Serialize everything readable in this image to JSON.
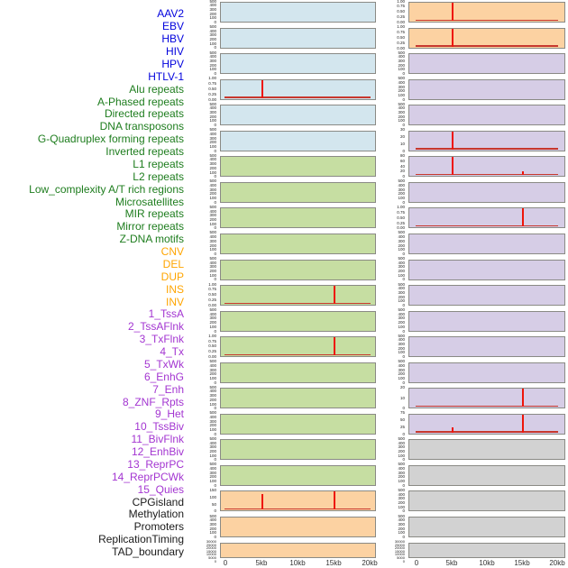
{
  "chart_data": {
    "type": "area",
    "title": "",
    "layout": {
      "columns": 2,
      "rows_per_column": 22,
      "fill_order": "column-major",
      "grid": false,
      "x_axis": {
        "tick_labels": [
          "0",
          "5kb",
          "10kb",
          "15kb",
          "20kb"
        ],
        "range_kb": [
          0,
          20
        ],
        "shown_only_on_bottom_row": true
      }
    },
    "category_styles": {
      "virus": {
        "label_color": "#0202dd",
        "panel_color": "#d3e6ee"
      },
      "repeat": {
        "label_color": "#1e7d1e",
        "panel_color": "#c6dea2"
      },
      "sv": {
        "label_color": "#ffa500",
        "panel_color": "#fcd2a2"
      },
      "chromhmm": {
        "label_color": "#a335d1",
        "panel_color": "#d6cde6"
      },
      "other": {
        "label_color": "#1a1a1a",
        "panel_color": "#d2d2d2"
      }
    },
    "series_colors": {
      "spike": "#ee1509",
      "baseline": "#c7382e",
      "panel_border": "#8a8a85"
    },
    "panels": [
      {
        "label": "AAV2",
        "category": "virus",
        "y_ticks": [
          "500",
          "400",
          "300",
          "200",
          "100",
          "0"
        ],
        "spikes": [],
        "baseline": false
      },
      {
        "label": "EBV",
        "category": "virus",
        "y_ticks": [
          "500",
          "400",
          "300",
          "200",
          "100",
          "0"
        ],
        "spikes": [],
        "baseline": false
      },
      {
        "label": "HBV",
        "category": "virus",
        "y_ticks": [
          "500",
          "400",
          "300",
          "200",
          "100",
          "0"
        ],
        "spikes": [],
        "baseline": false
      },
      {
        "label": "HIV",
        "category": "virus",
        "y_ticks": [
          "1.00",
          "0.75",
          "0.50",
          "0.25",
          "0.00"
        ],
        "spikes": [
          {
            "x_kb": 5,
            "height": 1
          }
        ],
        "baseline": true
      },
      {
        "label": "HPV",
        "category": "virus",
        "y_ticks": [
          "500",
          "400",
          "300",
          "200",
          "100",
          "0"
        ],
        "spikes": [],
        "baseline": false
      },
      {
        "label": "HTLV-1",
        "category": "virus",
        "y_ticks": [
          "500",
          "400",
          "300",
          "200",
          "100",
          "0"
        ],
        "spikes": [],
        "baseline": false
      },
      {
        "label": "Alu repeats",
        "category": "repeat",
        "y_ticks": [
          "500",
          "400",
          "300",
          "200",
          "100",
          "0"
        ],
        "spikes": [],
        "baseline": false
      },
      {
        "label": "A-Phased repeats",
        "category": "repeat",
        "y_ticks": [
          "500",
          "400",
          "300",
          "200",
          "100",
          "0"
        ],
        "spikes": [],
        "baseline": false
      },
      {
        "label": "Directed repeats",
        "category": "repeat",
        "y_ticks": [
          "500",
          "400",
          "300",
          "200",
          "100",
          "0"
        ],
        "spikes": [],
        "baseline": false
      },
      {
        "label": "DNA transposons",
        "category": "repeat",
        "y_ticks": [
          "500",
          "400",
          "300",
          "200",
          "100",
          "0"
        ],
        "spikes": [],
        "baseline": false
      },
      {
        "label": "G-Quadruplex forming repeats",
        "category": "repeat",
        "y_ticks": [
          "500",
          "400",
          "300",
          "200",
          "100",
          "0"
        ],
        "spikes": [],
        "baseline": false
      },
      {
        "label": "Inverted repeats",
        "category": "repeat",
        "y_ticks": [
          "1.00",
          "0.75",
          "0.50",
          "0.25",
          "0.00"
        ],
        "spikes": [
          {
            "x_kb": 15,
            "height": 1
          }
        ],
        "baseline": true
      },
      {
        "label": "L1 repeats",
        "category": "repeat",
        "y_ticks": [
          "500",
          "400",
          "300",
          "200",
          "100",
          "0"
        ],
        "spikes": [],
        "baseline": false
      },
      {
        "label": "L2 repeats",
        "category": "repeat",
        "y_ticks": [
          "1.00",
          "0.75",
          "0.50",
          "0.25",
          "0.00"
        ],
        "spikes": [
          {
            "x_kb": 15,
            "height": 1
          }
        ],
        "baseline": true
      },
      {
        "label": "Low_complexity A/T rich regions",
        "category": "repeat",
        "y_ticks": [
          "500",
          "400",
          "300",
          "200",
          "100",
          "0"
        ],
        "spikes": [],
        "baseline": false
      },
      {
        "label": "Microsatellites",
        "category": "repeat",
        "y_ticks": [
          "500",
          "400",
          "300",
          "200",
          "100",
          "0"
        ],
        "spikes": [],
        "baseline": false
      },
      {
        "label": "MIR repeats",
        "category": "repeat",
        "y_ticks": [
          "500",
          "400",
          "300",
          "200",
          "100",
          "0"
        ],
        "spikes": [],
        "baseline": false
      },
      {
        "label": "Mirror repeats",
        "category": "repeat",
        "y_ticks": [
          "500",
          "400",
          "300",
          "200",
          "100",
          "0"
        ],
        "spikes": [],
        "baseline": false
      },
      {
        "label": "Z-DNA motifs",
        "category": "repeat",
        "y_ticks": [
          "500",
          "400",
          "300",
          "200",
          "100",
          "0"
        ],
        "spikes": [],
        "baseline": false
      },
      {
        "label": "CNV",
        "category": "sv",
        "y_ticks": [
          "150",
          "100",
          "50",
          "0"
        ],
        "spikes": [
          {
            "x_kb": 5,
            "height": 0.85
          },
          {
            "x_kb": 15,
            "height": 1
          }
        ],
        "baseline": true
      },
      {
        "label": "DEL",
        "category": "sv",
        "y_ticks": [
          "500",
          "400",
          "300",
          "200",
          "100",
          "0"
        ],
        "spikes": [],
        "baseline": false
      },
      {
        "label": "DUP",
        "category": "sv",
        "y_ticks": [
          "30000",
          "25000",
          "20000",
          "15000",
          "10000",
          "5000",
          "0"
        ],
        "spikes": [],
        "baseline": false
      },
      {
        "label": "INS",
        "category": "sv",
        "y_ticks": [
          "1.00",
          "0.75",
          "0.50",
          "0.25",
          "0.00"
        ],
        "spikes": [
          {
            "x_kb": 5,
            "height": 1
          }
        ],
        "baseline": true
      },
      {
        "label": "INV",
        "category": "sv",
        "y_ticks": [
          "1.00",
          "0.75",
          "0.50",
          "0.25",
          "0.00"
        ],
        "spikes": [
          {
            "x_kb": 5,
            "height": 1
          }
        ],
        "baseline": true
      },
      {
        "label": "1_TssA",
        "category": "chromhmm",
        "y_ticks": [
          "500",
          "400",
          "300",
          "200",
          "100",
          "0"
        ],
        "spikes": [],
        "baseline": false
      },
      {
        "label": "2_TssAFlnk",
        "category": "chromhmm",
        "y_ticks": [
          "500",
          "400",
          "300",
          "200",
          "100",
          "0"
        ],
        "spikes": [],
        "baseline": false
      },
      {
        "label": "3_TxFlnk",
        "category": "chromhmm",
        "y_ticks": [
          "500",
          "400",
          "300",
          "200",
          "100",
          "0"
        ],
        "spikes": [],
        "baseline": false
      },
      {
        "label": "4_Tx",
        "category": "chromhmm",
        "y_ticks": [
          "30",
          "20",
          "10",
          "0"
        ],
        "spikes": [
          {
            "x_kb": 5,
            "height": 1
          }
        ],
        "baseline": true
      },
      {
        "label": "5_TxWk",
        "category": "chromhmm",
        "y_ticks": [
          "80",
          "60",
          "40",
          "20",
          "0"
        ],
        "spikes": [
          {
            "x_kb": 5,
            "height": 1
          },
          {
            "x_kb": 15,
            "height": 0.22
          }
        ],
        "baseline": true
      },
      {
        "label": "6_EnhG",
        "category": "chromhmm",
        "y_ticks": [
          "500",
          "400",
          "300",
          "200",
          "100",
          "0"
        ],
        "spikes": [],
        "baseline": false
      },
      {
        "label": "7_Enh",
        "category": "chromhmm",
        "y_ticks": [
          "1.00",
          "0.75",
          "0.50",
          "0.25",
          "0.00"
        ],
        "spikes": [
          {
            "x_kb": 15,
            "height": 1
          }
        ],
        "baseline": true
      },
      {
        "label": "8_ZNF_Rpts",
        "category": "chromhmm",
        "y_ticks": [
          "500",
          "400",
          "300",
          "200",
          "100",
          "0"
        ],
        "spikes": [],
        "baseline": false
      },
      {
        "label": "9_Het",
        "category": "chromhmm",
        "y_ticks": [
          "500",
          "400",
          "300",
          "200",
          "100",
          "0"
        ],
        "spikes": [],
        "baseline": false
      },
      {
        "label": "10_TssBiv",
        "category": "chromhmm",
        "y_ticks": [
          "500",
          "400",
          "300",
          "200",
          "100",
          "0"
        ],
        "spikes": [],
        "baseline": false
      },
      {
        "label": "11_BivFlnk",
        "category": "chromhmm",
        "y_ticks": [
          "500",
          "400",
          "300",
          "200",
          "100",
          "0"
        ],
        "spikes": [],
        "baseline": false
      },
      {
        "label": "12_EnhBiv",
        "category": "chromhmm",
        "y_ticks": [
          "500",
          "400",
          "300",
          "200",
          "100",
          "0"
        ],
        "spikes": [],
        "baseline": false
      },
      {
        "label": "13_ReprPC",
        "category": "chromhmm",
        "y_ticks": [
          "500",
          "400",
          "300",
          "200",
          "100",
          "0"
        ],
        "spikes": [],
        "baseline": false
      },
      {
        "label": "14_ReprPCWk",
        "category": "chromhmm",
        "y_ticks": [
          "20",
          "10",
          "0"
        ],
        "spikes": [
          {
            "x_kb": 15,
            "height": 1
          }
        ],
        "baseline": true
      },
      {
        "label": "15_Quies",
        "category": "chromhmm",
        "y_ticks": [
          "75",
          "50",
          "25",
          "0"
        ],
        "spikes": [
          {
            "x_kb": 5,
            "height": 0.3
          },
          {
            "x_kb": 15,
            "height": 1
          }
        ],
        "baseline": true
      },
      {
        "label": "CPGisland",
        "category": "other",
        "y_ticks": [
          "500",
          "400",
          "300",
          "200",
          "100",
          "0"
        ],
        "spikes": [],
        "baseline": false
      },
      {
        "label": "Methylation",
        "category": "other",
        "y_ticks": [
          "500",
          "400",
          "300",
          "200",
          "100",
          "0"
        ],
        "spikes": [],
        "baseline": false
      },
      {
        "label": "Promoters",
        "category": "other",
        "y_ticks": [
          "500",
          "400",
          "300",
          "200",
          "100",
          "0"
        ],
        "spikes": [],
        "baseline": false
      },
      {
        "label": "ReplicationTiming",
        "category": "other",
        "y_ticks": [
          "500",
          "400",
          "300",
          "200",
          "100",
          "0"
        ],
        "spikes": [],
        "baseline": false
      },
      {
        "label": "TAD_boundary",
        "category": "other",
        "y_ticks": [
          "30000",
          "25000",
          "20000",
          "15000",
          "10000",
          "5000",
          "0"
        ],
        "spikes": [],
        "baseline": false
      }
    ]
  }
}
